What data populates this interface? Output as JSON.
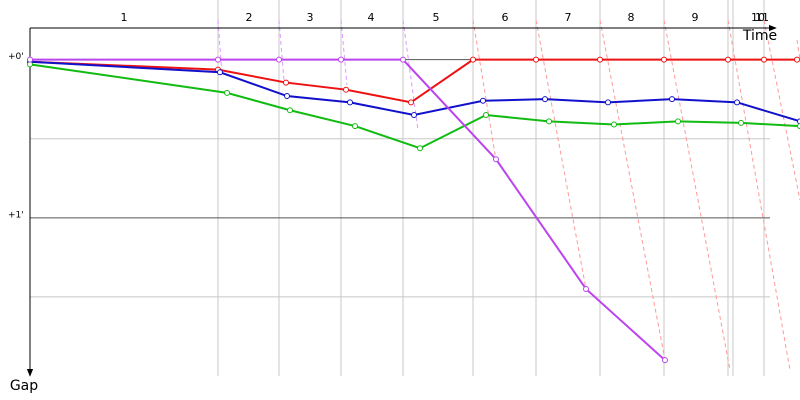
{
  "chart_data": {
    "type": "line",
    "x_label": "Time",
    "y_label": "Gap",
    "xlim": [
      0,
      770
    ],
    "ylim": [
      -0.2,
      2.0
    ],
    "xticks": [
      188,
      249,
      311,
      373,
      443,
      506,
      570,
      634,
      698,
      703,
      734
    ],
    "lap_labels": [
      "1",
      "2",
      "3",
      "4",
      "5",
      "6",
      "7",
      "8",
      "9",
      "10",
      "11"
    ],
    "lap_label_x": [
      94,
      219,
      280,
      341,
      406,
      475,
      538,
      601,
      665,
      728,
      732
    ],
    "yticks": [
      {
        "value": 0,
        "label": "+0'"
      },
      {
        "value": 1,
        "label": "+1'"
      }
    ],
    "yticks_minor": [
      0.5,
      1.5
    ],
    "grid": true,
    "series": [
      {
        "color": "#ee1111",
        "x": [
          0,
          188,
          256,
          316,
          381,
          443,
          506,
          570,
          634,
          698,
          734,
          767
        ],
        "values": [
          0.013,
          0.063,
          0.145,
          0.19,
          0.27,
          0,
          0,
          0,
          0,
          0,
          0,
          0
        ]
      },
      {
        "color": "#1111cc",
        "x": [
          0,
          190,
          257,
          320,
          384,
          453,
          515,
          578,
          642,
          707,
          770
        ],
        "values": [
          0.013,
          0.08,
          0.23,
          0.27,
          0.35,
          0.26,
          0.25,
          0.27,
          0.25,
          0.27,
          0.39
        ]
      },
      {
        "color": "#11bb11",
        "x": [
          0,
          197,
          260,
          325,
          390,
          456,
          519,
          584,
          648,
          711,
          770
        ],
        "values": [
          0.03,
          0.21,
          0.32,
          0.42,
          0.56,
          0.35,
          0.39,
          0.41,
          0.39,
          0.4,
          0.42
        ]
      },
      {
        "color": "#bb44ee",
        "x": [
          0,
          188,
          249,
          311,
          373,
          466,
          556,
          635
        ],
        "values": [
          0,
          0,
          0,
          0,
          0,
          0.63,
          1.45,
          1.9
        ]
      }
    ]
  }
}
